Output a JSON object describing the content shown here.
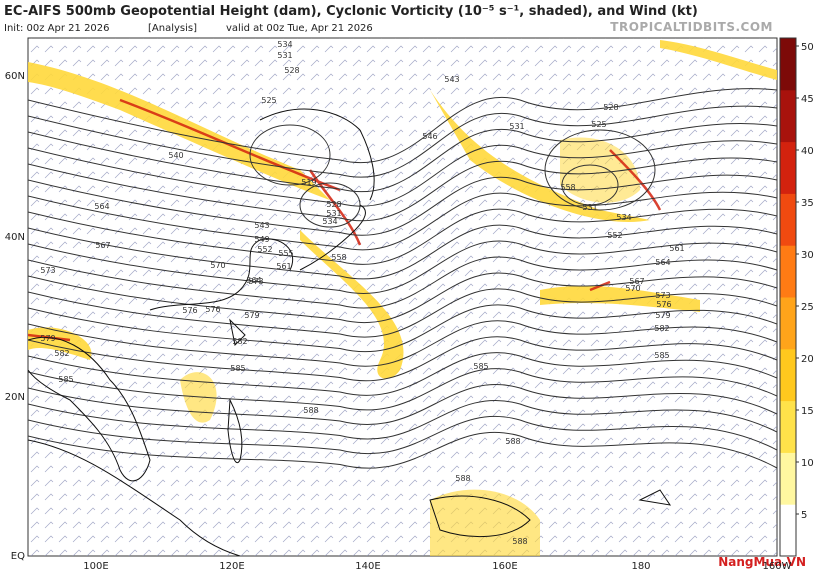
{
  "header": {
    "title": "EC-AIFS 500mb Geopotential Height (dam), Cyclonic Vorticity (10⁻⁵ s⁻¹, shaded), and Wind (kt)",
    "init": "Init: 00z Apr 21 2026",
    "analysis": "[Analysis]",
    "valid": "valid at 00z Tue, Apr 21 2026"
  },
  "source": "TROPICALTIDBITS.COM",
  "watermark": "NangMua.VN",
  "latitudes": [
    "60N",
    "40N",
    "20N",
    "EQ"
  ],
  "longitudes": [
    "100E",
    "120E",
    "140E",
    "160E",
    "180",
    "160W"
  ],
  "colorbar": {
    "ticks": [
      5,
      10,
      15,
      20,
      25,
      30,
      35,
      40,
      45,
      50
    ],
    "colors": [
      "#ffffff",
      "#fff7a0",
      "#ffe24a",
      "#ffc81e",
      "#ffa41a",
      "#ff7b14",
      "#f04a10",
      "#d3220e",
      "#a8120c",
      "#7d0a08"
    ]
  },
  "contour_labels": [
    "534",
    "531",
    "528",
    "525",
    "540",
    "564",
    "567",
    "573",
    "576",
    "579",
    "582",
    "585",
    "519",
    "528",
    "531",
    "534",
    "543",
    "549",
    "552",
    "555",
    "558",
    "561",
    "564",
    "570",
    "573",
    "576",
    "579",
    "582",
    "585",
    "588",
    "588",
    "588",
    "588",
    "543",
    "546",
    "531",
    "528",
    "525",
    "531",
    "534",
    "552",
    "558",
    "561",
    "564",
    "567",
    "570",
    "573",
    "576",
    "579",
    "582",
    "585",
    "585"
  ]
}
